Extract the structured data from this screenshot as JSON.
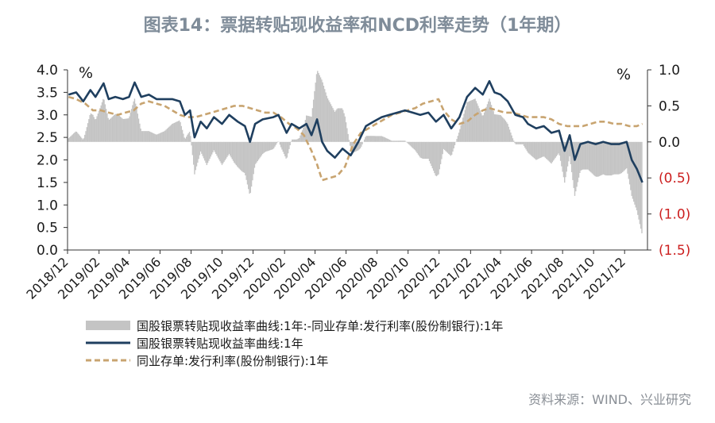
{
  "title": "图表14：票据转贴现收益率和NCD利率走势（1年期）",
  "source": "资料来源：WIND、兴业研究",
  "colors": {
    "spread": "#c4c4c4",
    "bill": "#1f3f5f",
    "ncd": "#c8a470",
    "neg_tick": "#cc1f1f"
  },
  "chart_data": {
    "type": "line",
    "title": "图表14：票据转贴现收益率和NCD利率走势（1年期）",
    "left_axis": {
      "unit": "%",
      "ylim": [
        0,
        4
      ],
      "ticks": [
        "4.0",
        "3.5",
        "3.0",
        "2.5",
        "2.0",
        "1.5",
        "1.0",
        "0.5",
        "0.0"
      ]
    },
    "right_axis": {
      "unit": "%",
      "ylim": [
        -1.5,
        1.0
      ],
      "ticks": [
        "1.0",
        "0.5",
        "0.0",
        "(0.5)",
        "(1.0)",
        "(1.5)"
      ]
    },
    "x_ticks": [
      "2018/12",
      "2019/02",
      "2019/04",
      "2019/06",
      "2019/08",
      "2019/10",
      "2019/12",
      "2020/02",
      "2020/04",
      "2020/06",
      "2020/08",
      "2020/10",
      "2020/12",
      "2021/02",
      "2021/04",
      "2021/06",
      "2021/08",
      "2021/10",
      "2021/12"
    ],
    "x_range": [
      "2018-12-01",
      "2022-01-15"
    ],
    "legend": "bottom",
    "series": [
      {
        "name": "国股银票转贴现收益率曲线:1年",
        "axis": "left",
        "style": "solid",
        "points": [
          [
            "2018-12-03",
            3.45
          ],
          [
            "2018-12-18",
            3.5
          ],
          [
            "2019-01-01",
            3.3
          ],
          [
            "2019-01-15",
            3.55
          ],
          [
            "2019-01-25",
            3.4
          ],
          [
            "2019-02-10",
            3.7
          ],
          [
            "2019-02-20",
            3.35
          ],
          [
            "2019-03-05",
            3.4
          ],
          [
            "2019-03-20",
            3.35
          ],
          [
            "2019-04-01",
            3.4
          ],
          [
            "2019-04-12",
            3.72
          ],
          [
            "2019-04-25",
            3.4
          ],
          [
            "2019-05-10",
            3.45
          ],
          [
            "2019-05-25",
            3.35
          ],
          [
            "2019-06-10",
            3.35
          ],
          [
            "2019-06-25",
            3.35
          ],
          [
            "2019-07-10",
            3.3
          ],
          [
            "2019-07-20",
            3.0
          ],
          [
            "2019-07-30",
            3.1
          ],
          [
            "2019-08-08",
            2.5
          ],
          [
            "2019-08-20",
            2.85
          ],
          [
            "2019-09-01",
            2.7
          ],
          [
            "2019-09-15",
            2.95
          ],
          [
            "2019-10-01",
            2.8
          ],
          [
            "2019-10-15",
            3.0
          ],
          [
            "2019-11-01",
            2.85
          ],
          [
            "2019-11-15",
            2.75
          ],
          [
            "2019-11-25",
            2.4
          ],
          [
            "2019-12-05",
            2.8
          ],
          [
            "2019-12-20",
            2.9
          ],
          [
            "2020-01-10",
            2.95
          ],
          [
            "2020-01-20",
            3.0
          ],
          [
            "2020-02-05",
            2.6
          ],
          [
            "2020-02-15",
            2.8
          ],
          [
            "2020-03-01",
            2.7
          ],
          [
            "2020-03-15",
            2.8
          ],
          [
            "2020-03-25",
            2.55
          ],
          [
            "2020-04-05",
            2.9
          ],
          [
            "2020-04-15",
            2.4
          ],
          [
            "2020-04-25",
            2.2
          ],
          [
            "2020-05-10",
            2.05
          ],
          [
            "2020-05-25",
            2.25
          ],
          [
            "2020-06-10",
            2.1
          ],
          [
            "2020-06-25",
            2.4
          ],
          [
            "2020-07-10",
            2.75
          ],
          [
            "2020-07-25",
            2.85
          ],
          [
            "2020-08-10",
            2.95
          ],
          [
            "2020-08-25",
            3.0
          ],
          [
            "2020-09-10",
            3.05
          ],
          [
            "2020-09-25",
            3.1
          ],
          [
            "2020-10-10",
            3.05
          ],
          [
            "2020-10-25",
            3.0
          ],
          [
            "2020-11-10",
            3.05
          ],
          [
            "2020-11-25",
            2.85
          ],
          [
            "2020-12-10",
            3.0
          ],
          [
            "2020-12-25",
            2.7
          ],
          [
            "2021-01-10",
            2.95
          ],
          [
            "2021-01-25",
            3.4
          ],
          [
            "2021-02-10",
            3.6
          ],
          [
            "2021-02-25",
            3.45
          ],
          [
            "2021-03-10",
            3.75
          ],
          [
            "2021-03-20",
            3.5
          ],
          [
            "2021-04-01",
            3.45
          ],
          [
            "2021-04-15",
            3.3
          ],
          [
            "2021-04-30",
            3.0
          ],
          [
            "2021-05-15",
            2.95
          ],
          [
            "2021-05-25",
            2.8
          ],
          [
            "2021-06-10",
            2.7
          ],
          [
            "2021-06-25",
            2.75
          ],
          [
            "2021-07-10",
            2.6
          ],
          [
            "2021-07-25",
            2.65
          ],
          [
            "2021-08-05",
            2.2
          ],
          [
            "2021-08-15",
            2.55
          ],
          [
            "2021-08-25",
            2.0
          ],
          [
            "2021-09-05",
            2.35
          ],
          [
            "2021-09-20",
            2.4
          ],
          [
            "2021-10-05",
            2.35
          ],
          [
            "2021-10-20",
            2.4
          ],
          [
            "2021-11-05",
            2.35
          ],
          [
            "2021-11-20",
            2.35
          ],
          [
            "2021-12-05",
            2.4
          ],
          [
            "2021-12-15",
            2.0
          ],
          [
            "2021-12-25",
            1.8
          ],
          [
            "2022-01-05",
            1.5
          ]
        ]
      },
      {
        "name": "同业存单:发行利率(股份制银行):1年",
        "axis": "left",
        "style": "dashed",
        "points": [
          [
            "2018-12-03",
            3.4
          ],
          [
            "2018-12-18",
            3.35
          ],
          [
            "2019-01-05",
            3.25
          ],
          [
            "2019-01-20",
            3.1
          ],
          [
            "2019-02-05",
            3.1
          ],
          [
            "2019-02-20",
            3.05
          ],
          [
            "2019-03-10",
            3.0
          ],
          [
            "2019-03-25",
            3.05
          ],
          [
            "2019-04-10",
            3.1
          ],
          [
            "2019-04-25",
            3.25
          ],
          [
            "2019-05-10",
            3.3
          ],
          [
            "2019-05-25",
            3.25
          ],
          [
            "2019-06-10",
            3.2
          ],
          [
            "2019-06-25",
            3.1
          ],
          [
            "2019-07-10",
            3.0
          ],
          [
            "2019-07-25",
            2.95
          ],
          [
            "2019-08-10",
            2.95
          ],
          [
            "2019-08-25",
            3.0
          ],
          [
            "2019-09-10",
            3.05
          ],
          [
            "2019-09-25",
            3.1
          ],
          [
            "2019-10-10",
            3.15
          ],
          [
            "2019-10-25",
            3.2
          ],
          [
            "2019-11-10",
            3.2
          ],
          [
            "2019-11-25",
            3.15
          ],
          [
            "2019-12-10",
            3.1
          ],
          [
            "2019-12-25",
            3.05
          ],
          [
            "2020-01-10",
            3.05
          ],
          [
            "2020-01-25",
            2.95
          ],
          [
            "2020-02-10",
            2.8
          ],
          [
            "2020-02-25",
            2.7
          ],
          [
            "2020-03-10",
            2.55
          ],
          [
            "2020-03-25",
            2.2
          ],
          [
            "2020-04-05",
            1.9
          ],
          [
            "2020-04-15",
            1.55
          ],
          [
            "2020-04-30",
            1.6
          ],
          [
            "2020-05-15",
            1.65
          ],
          [
            "2020-05-30",
            1.85
          ],
          [
            "2020-06-15",
            2.35
          ],
          [
            "2020-06-30",
            2.6
          ],
          [
            "2020-07-15",
            2.7
          ],
          [
            "2020-07-30",
            2.8
          ],
          [
            "2020-08-15",
            2.9
          ],
          [
            "2020-08-30",
            3.0
          ],
          [
            "2020-09-15",
            3.05
          ],
          [
            "2020-09-30",
            3.1
          ],
          [
            "2020-10-15",
            3.15
          ],
          [
            "2020-10-30",
            3.25
          ],
          [
            "2020-11-15",
            3.3
          ],
          [
            "2020-11-30",
            3.35
          ],
          [
            "2020-12-10",
            3.1
          ],
          [
            "2020-12-25",
            2.9
          ],
          [
            "2021-01-10",
            2.8
          ],
          [
            "2021-01-25",
            2.85
          ],
          [
            "2021-02-10",
            3.0
          ],
          [
            "2021-02-25",
            3.1
          ],
          [
            "2021-03-10",
            3.15
          ],
          [
            "2021-03-25",
            3.1
          ],
          [
            "2021-04-10",
            3.05
          ],
          [
            "2021-04-25",
            3.05
          ],
          [
            "2021-05-10",
            3.0
          ],
          [
            "2021-05-25",
            2.95
          ],
          [
            "2021-06-10",
            2.95
          ],
          [
            "2021-06-25",
            2.95
          ],
          [
            "2021-07-10",
            2.9
          ],
          [
            "2021-07-25",
            2.8
          ],
          [
            "2021-08-10",
            2.75
          ],
          [
            "2021-08-25",
            2.75
          ],
          [
            "2021-09-10",
            2.75
          ],
          [
            "2021-09-25",
            2.8
          ],
          [
            "2021-10-10",
            2.85
          ],
          [
            "2021-10-25",
            2.85
          ],
          [
            "2021-11-10",
            2.8
          ],
          [
            "2021-11-25",
            2.8
          ],
          [
            "2021-12-10",
            2.75
          ],
          [
            "2021-12-25",
            2.75
          ],
          [
            "2022-01-05",
            2.8
          ]
        ]
      },
      {
        "name": "国股银票转贴现收益率曲线:1年:-同业存单:发行利率(股份制银行):1年",
        "axis": "right",
        "style": "area",
        "derived_from": "difference of the two line series"
      }
    ]
  },
  "legend_items": [
    {
      "label": "国股银票转贴现收益率曲线:1年:-同业存单:发行利率(股份制银行):1年"
    },
    {
      "label": "国股银票转贴现收益率曲线:1年"
    },
    {
      "label": "同业存单:发行利率(股份制银行):1年"
    }
  ]
}
